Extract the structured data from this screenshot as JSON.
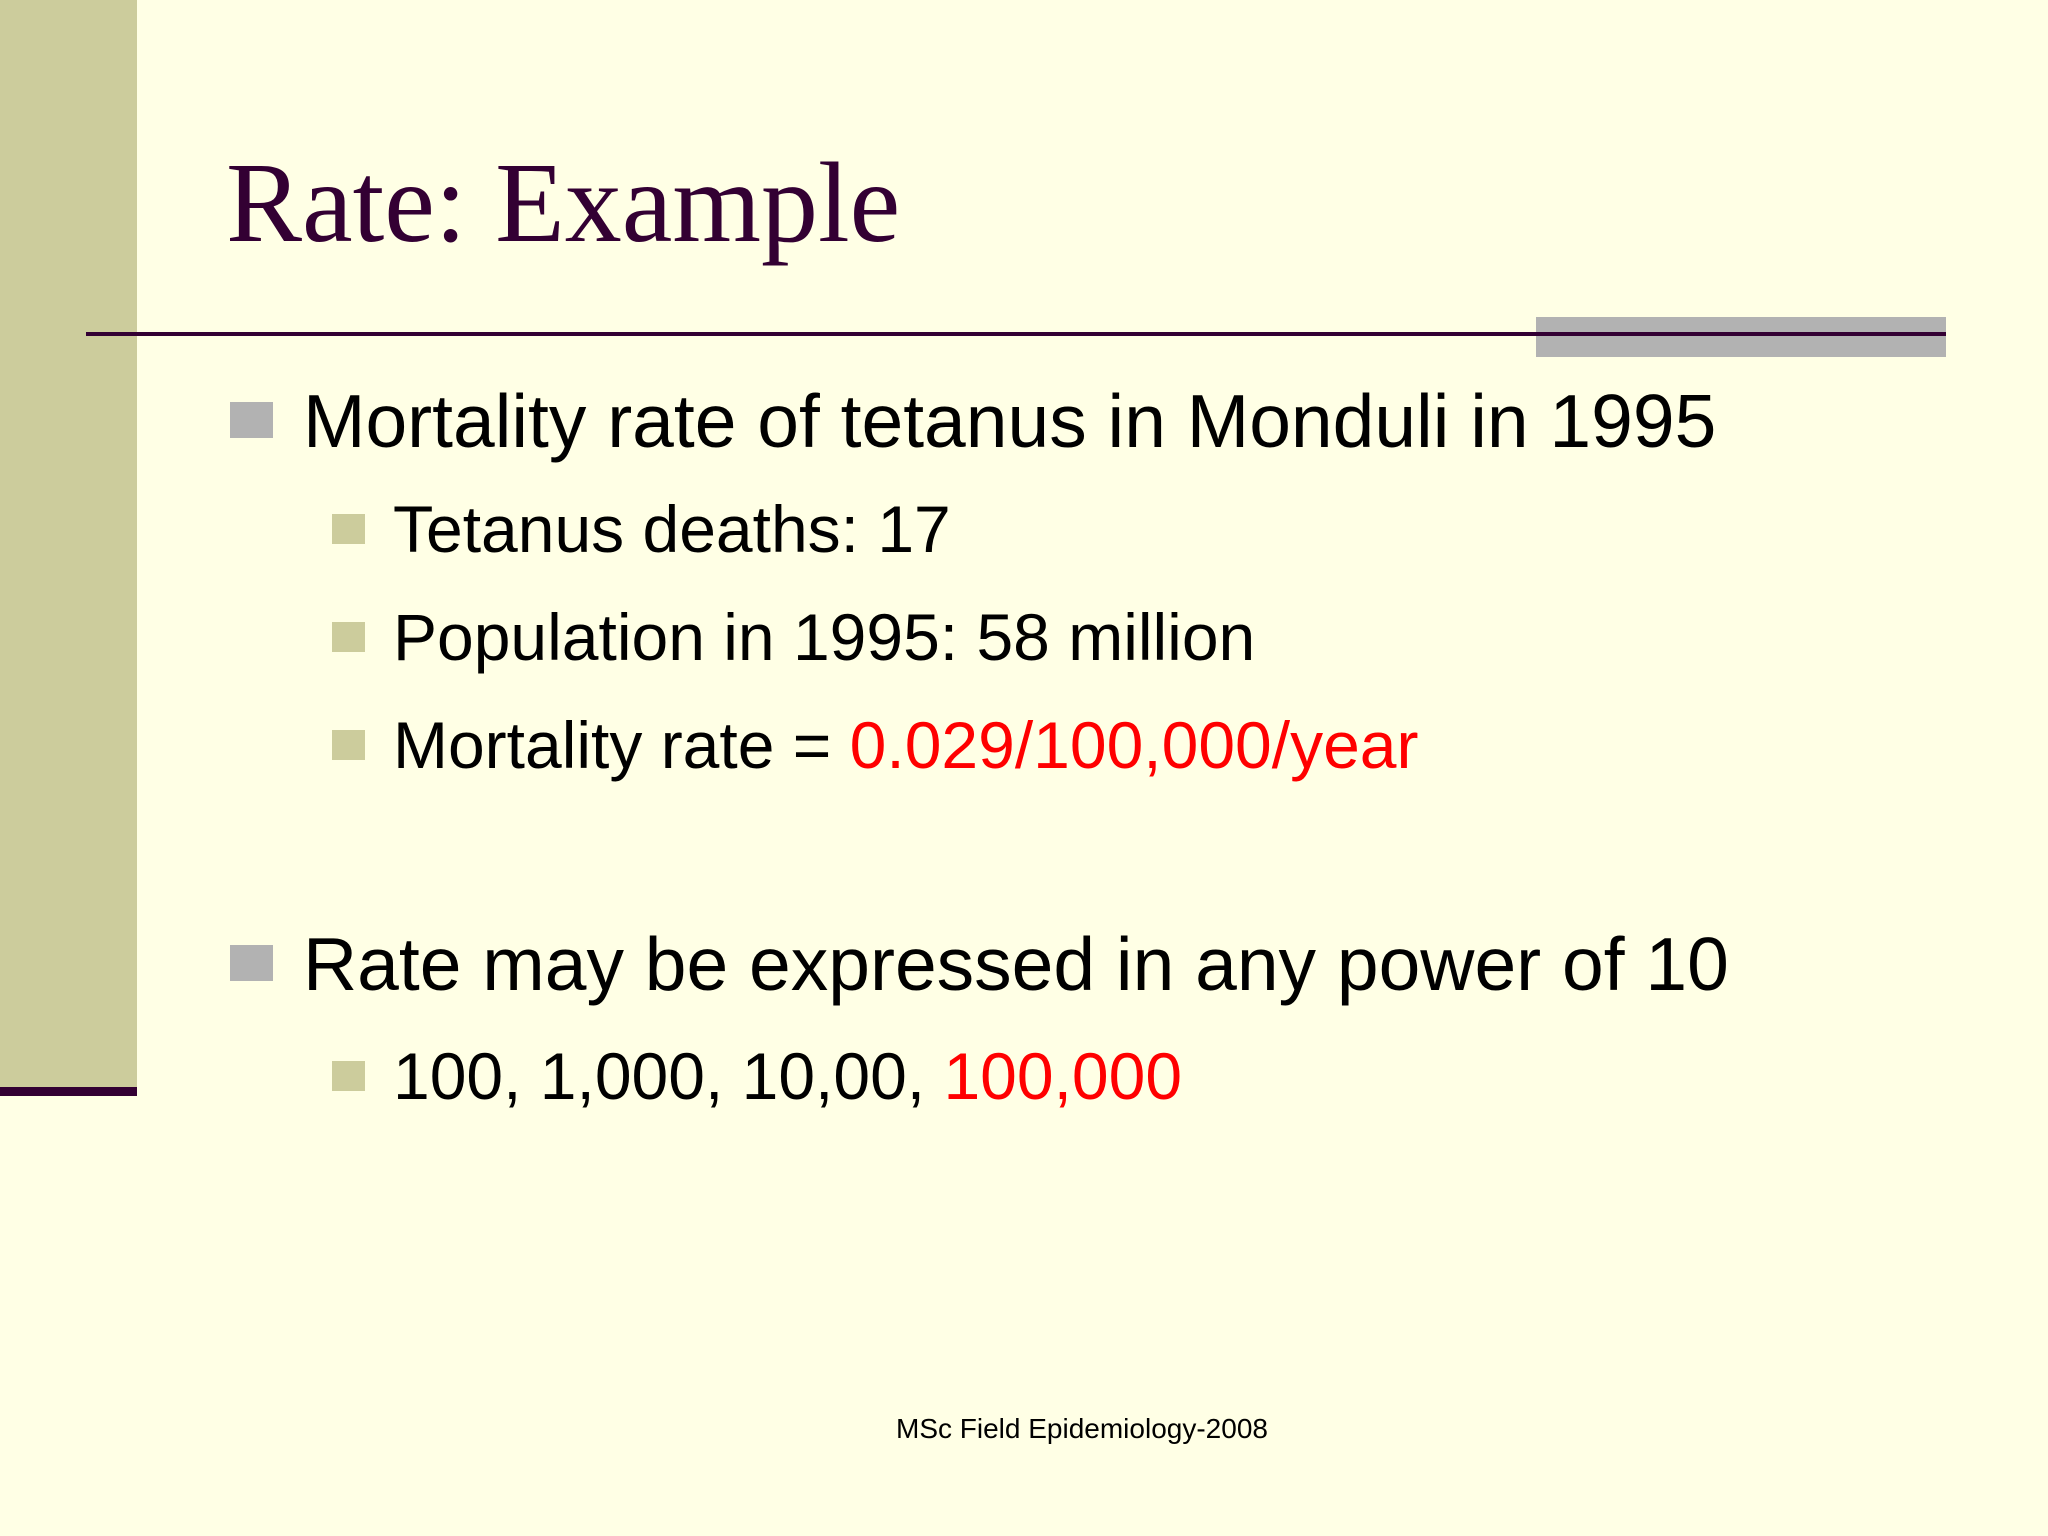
{
  "slide": {
    "title": "Rate: Example",
    "bullets": [
      {
        "text": "Mortality rate of tetanus in Monduli in 1995",
        "sub": [
          "Tetanus deaths: 17",
          "Population in 1995: 58 million",
          {
            "prefix": "Mortality rate = ",
            "highlight": "0.029/100,000/year"
          }
        ]
      },
      {
        "text": "Rate may be expressed in any power of 10",
        "sub": [
          {
            "prefix": "100, 1,000, 10,00, ",
            "highlight": "100,000"
          }
        ]
      }
    ],
    "footer": "MSc Field Epidemiology-2008"
  },
  "colors": {
    "background": "#FFFFE5",
    "title": "#330033",
    "side_band": "#CCCC9C",
    "accent_bar": "#B2B2B2",
    "highlight": "#FF0000",
    "text": "#000000"
  },
  "icons": {
    "bullet_level1": "square-bullet-icon (gray)",
    "bullet_level2": "square-bullet-icon (olive)"
  }
}
